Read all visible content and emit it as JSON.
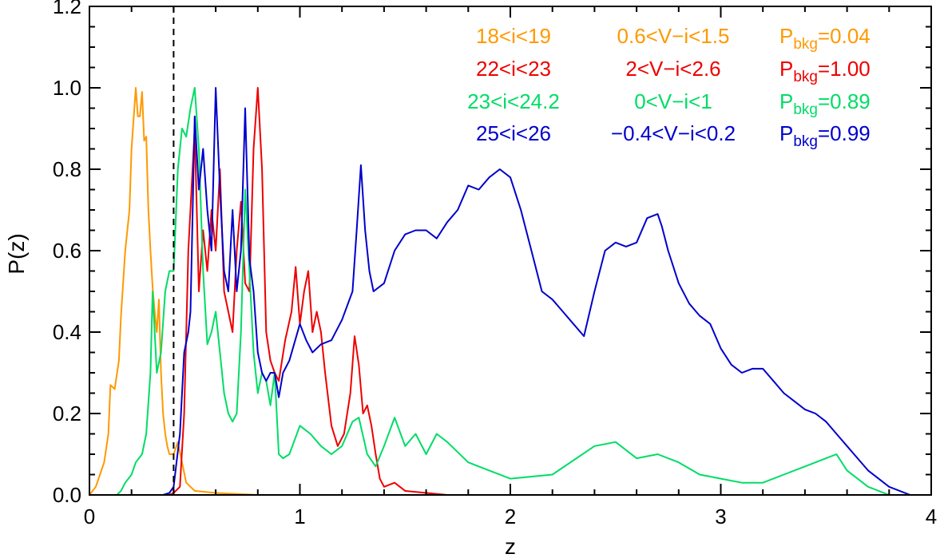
{
  "chart_data": {
    "type": "line",
    "xlabel": "z",
    "ylabel": "P(z)",
    "xlim": [
      0,
      4
    ],
    "ylim": [
      0,
      1.2
    ],
    "x_ticks": [
      "0",
      "1",
      "2",
      "3",
      "4"
    ],
    "y_ticks": [
      "0.0",
      "0.2",
      "0.4",
      "0.6",
      "0.8",
      "1.0",
      "1.2"
    ],
    "reference_line": {
      "x": 0.4,
      "style": "dashed",
      "color": "#000000"
    },
    "legend": [
      {
        "mag": "18<i<19",
        "color_cut": "0.6<V−i<1.5",
        "p_label": "P",
        "p_sub": "bkg",
        "p_value": "=0.04",
        "color": "#FF9900"
      },
      {
        "mag": "22<i<23",
        "color_cut": "2<V−i<2.6",
        "p_label": "P",
        "p_sub": "bkg",
        "p_value": "=1.00",
        "color": "#EE0000"
      },
      {
        "mag": "23<i<24.2",
        "color_cut": "0<V−i<1",
        "p_label": "P",
        "p_sub": "bkg",
        "p_value": "=0.89",
        "color": "#00DD66"
      },
      {
        "mag": "25<i<26",
        "color_cut": "−0.4<V−i<0.2",
        "p_label": "P",
        "p_sub": "bkg",
        "p_value": "=0.99",
        "color": "#0000CC"
      }
    ],
    "series": [
      {
        "color": "#FF9900",
        "x": [
          0.0,
          0.03,
          0.05,
          0.07,
          0.09,
          0.1,
          0.12,
          0.14,
          0.15,
          0.17,
          0.19,
          0.2,
          0.22,
          0.23,
          0.24,
          0.25,
          0.26,
          0.27,
          0.28,
          0.29,
          0.3,
          0.31,
          0.32,
          0.33,
          0.34,
          0.35,
          0.36,
          0.37,
          0.38,
          0.4,
          0.42,
          0.44,
          0.46,
          0.5,
          0.6,
          0.8,
          1.0,
          1.5,
          2.0,
          4.0
        ],
        "y": [
          0.0,
          0.02,
          0.05,
          0.08,
          0.15,
          0.27,
          0.26,
          0.33,
          0.44,
          0.6,
          0.7,
          0.85,
          1.0,
          0.93,
          0.93,
          0.99,
          0.87,
          0.88,
          0.7,
          0.6,
          0.51,
          0.45,
          0.4,
          0.48,
          0.3,
          0.2,
          0.15,
          0.12,
          0.1,
          0.1,
          0.13,
          0.08,
          0.03,
          0.01,
          0.005,
          0.0,
          0.0,
          0.0,
          0.0,
          0.0
        ]
      },
      {
        "color": "#EE0000",
        "x": [
          0.3,
          0.38,
          0.4,
          0.43,
          0.45,
          0.47,
          0.49,
          0.5,
          0.52,
          0.54,
          0.56,
          0.58,
          0.6,
          0.62,
          0.64,
          0.66,
          0.68,
          0.7,
          0.72,
          0.74,
          0.76,
          0.78,
          0.8,
          0.82,
          0.84,
          0.86,
          0.88,
          0.9,
          0.93,
          0.96,
          0.98,
          1.0,
          1.02,
          1.04,
          1.06,
          1.08,
          1.1,
          1.12,
          1.15,
          1.18,
          1.21,
          1.24,
          1.26,
          1.28,
          1.3,
          1.32,
          1.34,
          1.36,
          1.38,
          1.4,
          1.45,
          1.5,
          1.6,
          1.7,
          2.0,
          4.0
        ],
        "y": [
          0.0,
          0.0,
          0.005,
          0.02,
          0.2,
          0.6,
          0.8,
          0.9,
          0.5,
          0.65,
          0.55,
          0.7,
          0.6,
          0.8,
          0.5,
          0.45,
          0.4,
          0.6,
          0.72,
          0.52,
          0.5,
          0.85,
          1.0,
          0.8,
          0.4,
          0.33,
          0.3,
          0.28,
          0.38,
          0.45,
          0.56,
          0.42,
          0.5,
          0.55,
          0.4,
          0.45,
          0.4,
          0.3,
          0.17,
          0.12,
          0.15,
          0.25,
          0.39,
          0.32,
          0.2,
          0.22,
          0.17,
          0.1,
          0.04,
          0.02,
          0.03,
          0.01,
          0.005,
          0.0,
          0.0,
          0.0
        ]
      },
      {
        "color": "#00DD66",
        "x": [
          0.1,
          0.13,
          0.15,
          0.17,
          0.2,
          0.22,
          0.25,
          0.27,
          0.29,
          0.3,
          0.32,
          0.34,
          0.36,
          0.38,
          0.4,
          0.42,
          0.44,
          0.46,
          0.48,
          0.5,
          0.52,
          0.54,
          0.56,
          0.58,
          0.6,
          0.62,
          0.64,
          0.66,
          0.68,
          0.7,
          0.72,
          0.74,
          0.76,
          0.78,
          0.8,
          0.82,
          0.84,
          0.86,
          0.88,
          0.9,
          0.92,
          0.95,
          1.0,
          1.05,
          1.1,
          1.15,
          1.2,
          1.25,
          1.28,
          1.32,
          1.36,
          1.4,
          1.45,
          1.5,
          1.55,
          1.6,
          1.65,
          1.7,
          1.8,
          1.9,
          2.0,
          2.2,
          2.4,
          2.5,
          2.6,
          2.7,
          2.8,
          2.9,
          3.0,
          3.1,
          3.2,
          3.3,
          3.4,
          3.5,
          3.55,
          3.6,
          3.7,
          3.8,
          3.9,
          4.0
        ],
        "y": [
          0.0,
          0.0,
          0.01,
          0.03,
          0.05,
          0.08,
          0.1,
          0.15,
          0.3,
          0.5,
          0.3,
          0.35,
          0.5,
          0.55,
          0.55,
          0.8,
          0.9,
          0.88,
          0.95,
          1.0,
          0.85,
          0.55,
          0.37,
          0.4,
          0.45,
          0.35,
          0.25,
          0.2,
          0.18,
          0.2,
          0.4,
          0.75,
          0.55,
          0.35,
          0.25,
          0.3,
          0.28,
          0.22,
          0.3,
          0.1,
          0.09,
          0.1,
          0.17,
          0.15,
          0.12,
          0.1,
          0.12,
          0.18,
          0.19,
          0.1,
          0.07,
          0.12,
          0.19,
          0.12,
          0.15,
          0.1,
          0.15,
          0.13,
          0.08,
          0.06,
          0.04,
          0.05,
          0.12,
          0.13,
          0.09,
          0.1,
          0.08,
          0.05,
          0.04,
          0.03,
          0.03,
          0.05,
          0.07,
          0.09,
          0.1,
          0.06,
          0.02,
          0.0,
          0.0,
          0.0
        ]
      },
      {
        "color": "#0000CC",
        "x": [
          0.3,
          0.35,
          0.38,
          0.4,
          0.43,
          0.45,
          0.47,
          0.48,
          0.5,
          0.52,
          0.54,
          0.56,
          0.58,
          0.6,
          0.62,
          0.64,
          0.66,
          0.68,
          0.7,
          0.72,
          0.74,
          0.76,
          0.78,
          0.8,
          0.82,
          0.84,
          0.86,
          0.88,
          0.9,
          0.92,
          0.95,
          1.0,
          1.03,
          1.06,
          1.1,
          1.15,
          1.2,
          1.25,
          1.27,
          1.29,
          1.31,
          1.33,
          1.35,
          1.4,
          1.45,
          1.5,
          1.55,
          1.6,
          1.65,
          1.7,
          1.75,
          1.8,
          1.85,
          1.9,
          1.95,
          2.0,
          2.05,
          2.1,
          2.15,
          2.2,
          2.25,
          2.3,
          2.35,
          2.4,
          2.45,
          2.5,
          2.55,
          2.6,
          2.65,
          2.7,
          2.72,
          2.75,
          2.8,
          2.85,
          2.9,
          2.95,
          3.0,
          3.05,
          3.1,
          3.15,
          3.2,
          3.25,
          3.3,
          3.35,
          3.4,
          3.45,
          3.5,
          3.55,
          3.6,
          3.65,
          3.7,
          3.75,
          3.8,
          3.85,
          3.9,
          4.0
        ],
        "y": [
          0.0,
          0.0,
          0.005,
          0.02,
          0.15,
          0.35,
          0.4,
          0.45,
          0.93,
          0.75,
          0.85,
          0.7,
          0.6,
          1.0,
          0.75,
          0.55,
          0.5,
          0.7,
          0.5,
          0.6,
          0.95,
          0.58,
          0.5,
          0.35,
          0.3,
          0.28,
          0.3,
          0.3,
          0.24,
          0.3,
          0.33,
          0.42,
          0.38,
          0.35,
          0.37,
          0.38,
          0.43,
          0.5,
          0.65,
          0.81,
          0.65,
          0.55,
          0.5,
          0.52,
          0.6,
          0.64,
          0.65,
          0.65,
          0.63,
          0.67,
          0.7,
          0.76,
          0.75,
          0.78,
          0.8,
          0.78,
          0.7,
          0.6,
          0.5,
          0.48,
          0.45,
          0.42,
          0.39,
          0.5,
          0.6,
          0.62,
          0.61,
          0.62,
          0.68,
          0.69,
          0.66,
          0.6,
          0.52,
          0.47,
          0.44,
          0.42,
          0.36,
          0.32,
          0.3,
          0.31,
          0.31,
          0.28,
          0.25,
          0.23,
          0.21,
          0.2,
          0.18,
          0.15,
          0.12,
          0.09,
          0.06,
          0.04,
          0.02,
          0.01,
          0.0,
          0.0
        ]
      }
    ]
  }
}
